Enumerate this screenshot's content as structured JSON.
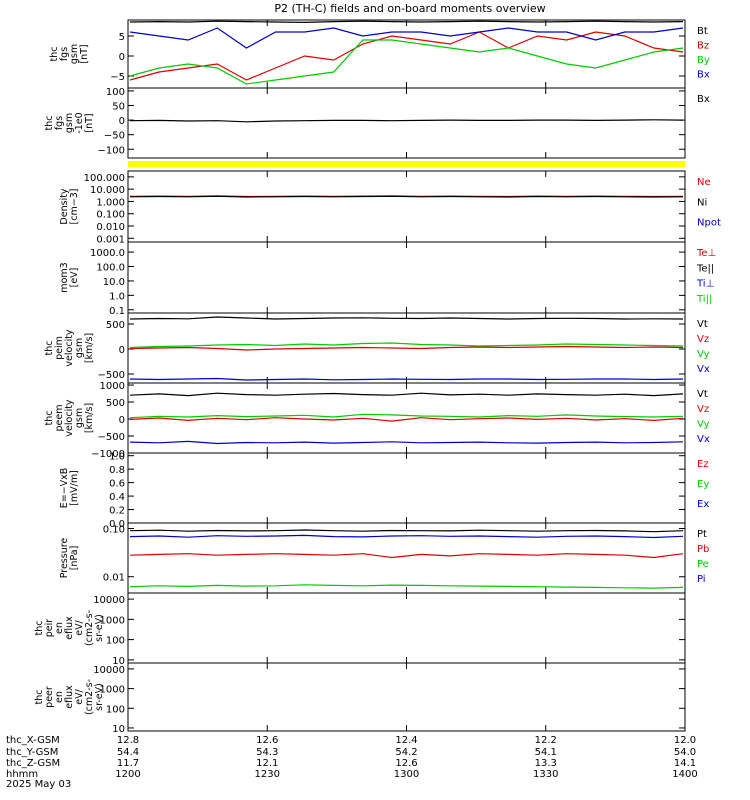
{
  "title": "P2 (TH-C) fields and on-board moments overview",
  "chart_data": [
    {
      "type": "line",
      "ylabel": [
        "thc",
        "fgs",
        "gsm",
        "[nT]"
      ],
      "ytick_labels": [
        "5",
        "0",
        "−5"
      ],
      "ylim": [
        -8,
        9
      ],
      "yticks": [
        5,
        0,
        -5
      ],
      "series": [
        {
          "name": "Bt",
          "color": "#000000",
          "values": [
            8.5,
            8.6,
            8.5,
            8.7,
            8.6,
            8.5,
            8.4,
            8.6,
            8.7,
            8.6,
            8.5,
            8.6,
            8.7,
            8.6,
            8.5,
            8.6,
            8.7,
            8.6,
            8.5,
            8.6
          ]
        },
        {
          "name": "Bz",
          "color": "#e00000",
          "values": [
            -6,
            -4,
            -3,
            -2,
            -6,
            -3,
            0,
            -1,
            3,
            5,
            4,
            3,
            6,
            2,
            5,
            4,
            6,
            5,
            2,
            1
          ]
        },
        {
          "name": "By",
          "color": "#00cc00",
          "values": [
            -5,
            -3,
            -2,
            -3,
            -7,
            -6,
            -5,
            -4,
            4,
            4,
            3,
            2,
            1,
            2,
            0,
            -2,
            -3,
            -1,
            1,
            2
          ]
        },
        {
          "name": "Bx",
          "color": "#0000cc",
          "values": [
            6,
            5,
            4,
            7,
            2,
            6,
            6,
            7,
            5,
            6,
            6,
            5,
            6,
            7,
            6,
            6,
            4,
            6,
            6,
            7
          ]
        }
      ]
    },
    {
      "type": "line",
      "ylabel": [
        "thc",
        "fgs",
        "gsm",
        "-1e0",
        "[nT]"
      ],
      "ytick_labels": [
        "100",
        "50",
        "0",
        "−50",
        "−100"
      ],
      "ylim": [
        -130,
        110
      ],
      "yticks": [
        100,
        50,
        0,
        -50,
        -100
      ],
      "series": [
        {
          "name": "Bx",
          "color": "#000000",
          "values": [
            -2,
            -1,
            -3,
            -2,
            -6,
            -3,
            -2,
            -1,
            -1,
            -2,
            -1,
            0,
            -1,
            -1,
            0,
            0,
            -1,
            0,
            1,
            0
          ]
        }
      ]
    },
    {
      "type": "line",
      "ylabel": [
        "Density",
        "[cm−3]"
      ],
      "log": true,
      "ytick_labels": [
        "100.000",
        "10.000",
        "1.000",
        "0.100",
        "0.010",
        "0.001"
      ],
      "ylim": [
        0.0005,
        300
      ],
      "yticks": [
        100,
        10,
        1,
        0.1,
        0.01,
        0.001
      ],
      "series": [
        {
          "name": "Ne",
          "color": "#e00000",
          "values": [
            2.6,
            2.7,
            2.6,
            2.8,
            2.5,
            2.6,
            2.7,
            2.6,
            2.7,
            2.8,
            2.6,
            2.7,
            2.6,
            2.5,
            2.7,
            2.6,
            2.7,
            2.6,
            2.5,
            2.6
          ]
        },
        {
          "name": "Ni",
          "color": "#000000",
          "values": [
            2.4,
            2.5,
            2.4,
            2.6,
            2.3,
            2.4,
            2.5,
            2.4,
            2.5,
            2.6,
            2.4,
            2.5,
            2.4,
            2.3,
            2.5,
            2.4,
            2.5,
            2.4,
            2.3,
            2.4
          ]
        },
        {
          "name": "Npot",
          "color": "#0000cc",
          "values": []
        }
      ]
    },
    {
      "type": "line",
      "ylabel": [
        "mom3",
        "[eV]"
      ],
      "log": true,
      "ytick_labels": [
        "1000.0",
        "100.0",
        "10.0",
        "1.0",
        "0.1"
      ],
      "ylim": [
        0.06,
        5000
      ],
      "yticks": [
        1000,
        100,
        10,
        1,
        0.1
      ],
      "series": [
        {
          "name": "Te⊥",
          "color": "#e00000",
          "values": []
        },
        {
          "name": "Te||",
          "color": "#000000",
          "values": []
        },
        {
          "name": "Ti⊥",
          "color": "#0000cc",
          "values": []
        },
        {
          "name": "Ti||",
          "color": "#00cc00",
          "values": []
        }
      ]
    },
    {
      "type": "line",
      "ylabel": [
        "thc",
        "peim",
        "velocity",
        "gsm",
        "[km/s]"
      ],
      "ytick_labels": [
        "500",
        "0",
        "−500"
      ],
      "ylim": [
        -680,
        720
      ],
      "yticks": [
        500,
        0,
        -500
      ],
      "series": [
        {
          "name": "Vt",
          "color": "#000000",
          "values": [
            600,
            610,
            605,
            640,
            620,
            600,
            610,
            620,
            625,
            615,
            610,
            620,
            610,
            600,
            610,
            615,
            610,
            600,
            605,
            600
          ]
        },
        {
          "name": "Vz",
          "color": "#e00000",
          "values": [
            10,
            20,
            30,
            10,
            -20,
            0,
            10,
            20,
            30,
            20,
            10,
            30,
            40,
            30,
            40,
            50,
            40,
            30,
            40,
            30
          ]
        },
        {
          "name": "Vy",
          "color": "#00cc00",
          "values": [
            30,
            50,
            60,
            80,
            90,
            70,
            100,
            80,
            110,
            120,
            90,
            80,
            60,
            70,
            80,
            100,
            90,
            80,
            70,
            60
          ]
        },
        {
          "name": "Vx",
          "color": "#0000cc",
          "values": [
            -600,
            -610,
            -600,
            -590,
            -620,
            -610,
            -600,
            -615,
            -610,
            -600,
            -605,
            -610,
            -600,
            -600,
            -610,
            -605,
            -600,
            -600,
            -610,
            -600
          ]
        }
      ]
    },
    {
      "type": "line",
      "ylabel": [
        "thc",
        "peem",
        "velocity",
        "gsm",
        "[km/s]"
      ],
      "ytick_labels": [
        "1000",
        "500",
        "0",
        "−500",
        "−1000"
      ],
      "ylim": [
        -1000,
        1060
      ],
      "yticks": [
        1000,
        500,
        0,
        -500,
        -1000
      ],
      "series": [
        {
          "name": "Vt",
          "color": "#000000",
          "values": [
            700,
            740,
            690,
            760,
            720,
            700,
            730,
            750,
            720,
            700,
            760,
            710,
            730,
            700,
            740,
            720,
            700,
            730,
            690,
            740
          ]
        },
        {
          "name": "Vz",
          "color": "#e00000",
          "values": [
            -10,
            30,
            -40,
            20,
            -20,
            40,
            0,
            -30,
            20,
            -60,
            40,
            -20,
            10,
            30,
            -10,
            20,
            -30,
            10,
            -40,
            20
          ]
        },
        {
          "name": "Vy",
          "color": "#00cc00",
          "values": [
            40,
            80,
            60,
            100,
            70,
            90,
            110,
            60,
            140,
            120,
            90,
            80,
            60,
            100,
            80,
            120,
            90,
            70,
            60,
            80
          ]
        },
        {
          "name": "Vx",
          "color": "#0000cc",
          "values": [
            -680,
            -700,
            -660,
            -720,
            -690,
            -700,
            -680,
            -710,
            -690,
            -670,
            -700,
            -690,
            -680,
            -700,
            -710,
            -690,
            -680,
            -700,
            -690,
            -670
          ]
        }
      ]
    },
    {
      "type": "line",
      "ylabel": [
        "E=−VxB",
        "[mV/m]"
      ],
      "ytick_labels": [
        "1.0",
        "0.8",
        "0.6",
        "0.4",
        "0.2",
        "0.0"
      ],
      "ylim": [
        0,
        1.04
      ],
      "yticks": [
        1.0,
        0.8,
        0.6,
        0.4,
        0.2,
        0.0
      ],
      "series": [
        {
          "name": "Ez",
          "color": "#e00000",
          "values": []
        },
        {
          "name": "Ey",
          "color": "#00cc00",
          "values": []
        },
        {
          "name": "Ex",
          "color": "#0000cc",
          "values": []
        }
      ]
    },
    {
      "type": "line",
      "ylabel": [
        "Pressure",
        "[nPa]"
      ],
      "log": true,
      "ytick_labels": [
        "0.10",
        "0.01"
      ],
      "ylim": [
        0.0046,
        0.13
      ],
      "yticks": [
        0.1,
        0.01
      ],
      "series": [
        {
          "name": "Pt",
          "color": "#000000",
          "values": [
            0.09,
            0.092,
            0.088,
            0.091,
            0.089,
            0.09,
            0.093,
            0.09,
            0.088,
            0.091,
            0.09,
            0.089,
            0.092,
            0.09,
            0.088,
            0.09,
            0.091,
            0.089,
            0.086,
            0.09
          ]
        },
        {
          "name": "Pb",
          "color": "#e00000",
          "values": [
            0.028,
            0.029,
            0.03,
            0.028,
            0.029,
            0.03,
            0.029,
            0.028,
            0.03,
            0.025,
            0.029,
            0.027,
            0.03,
            0.029,
            0.028,
            0.03,
            0.029,
            0.028,
            0.025,
            0.03
          ]
        },
        {
          "name": "Pe",
          "color": "#00cc00",
          "values": [
            0.0062,
            0.0065,
            0.0063,
            0.0066,
            0.0064,
            0.0065,
            0.0068,
            0.0066,
            0.0065,
            0.0067,
            0.0066,
            0.0065,
            0.0064,
            0.0063,
            0.0062,
            0.0061,
            0.006,
            0.0059,
            0.0058,
            0.006
          ]
        },
        {
          "name": "Pi",
          "color": "#0000cc",
          "values": [
            0.068,
            0.07,
            0.066,
            0.071,
            0.069,
            0.07,
            0.072,
            0.068,
            0.067,
            0.07,
            0.071,
            0.069,
            0.07,
            0.068,
            0.066,
            0.069,
            0.07,
            0.068,
            0.065,
            0.069
          ]
        }
      ]
    },
    {
      "type": "heatmap",
      "ylabel": [
        "thc",
        "peir",
        "en",
        "eflux",
        "eV/",
        "(cm2-s-",
        "sr-eV)"
      ],
      "log": true,
      "ytick_labels": [
        "10000",
        "1000",
        "100",
        "10"
      ],
      "ylim": [
        7,
        20000
      ],
      "yticks": [
        10000,
        1000,
        100,
        10
      ],
      "series": []
    },
    {
      "type": "heatmap",
      "ylabel": [
        "thc",
        "peer",
        "en",
        "eflux",
        "eV/",
        "(cm2-s-",
        "sr-eV)"
      ],
      "log": true,
      "ytick_labels": [
        "10000",
        "1000",
        "100",
        "10"
      ],
      "ylim": [
        7,
        20000
      ],
      "yticks": [
        10000,
        1000,
        100,
        10
      ],
      "series": []
    }
  ],
  "xaxis": {
    "row_labels": [
      "thc_X-GSM",
      "thc_Y-GSM",
      "thc_Z-GSM",
      "hhmm",
      "2025 May 03"
    ],
    "ticks": [
      {
        "x": "12.8",
        "y": "54.4",
        "z": "11.7",
        "hhmm": "1200"
      },
      {
        "x": "12.6",
        "y": "54.3",
        "z": "12.1",
        "hhmm": "1230"
      },
      {
        "x": "12.4",
        "y": "54.2",
        "z": "12.6",
        "hhmm": "1300"
      },
      {
        "x": "12.2",
        "y": "54.1",
        "z": "13.3",
        "hhmm": "1330"
      },
      {
        "x": "12.0",
        "y": "54.0",
        "z": "14.1",
        "hhmm": "1400"
      }
    ]
  },
  "status_bar": {
    "color": "#ffff00"
  }
}
